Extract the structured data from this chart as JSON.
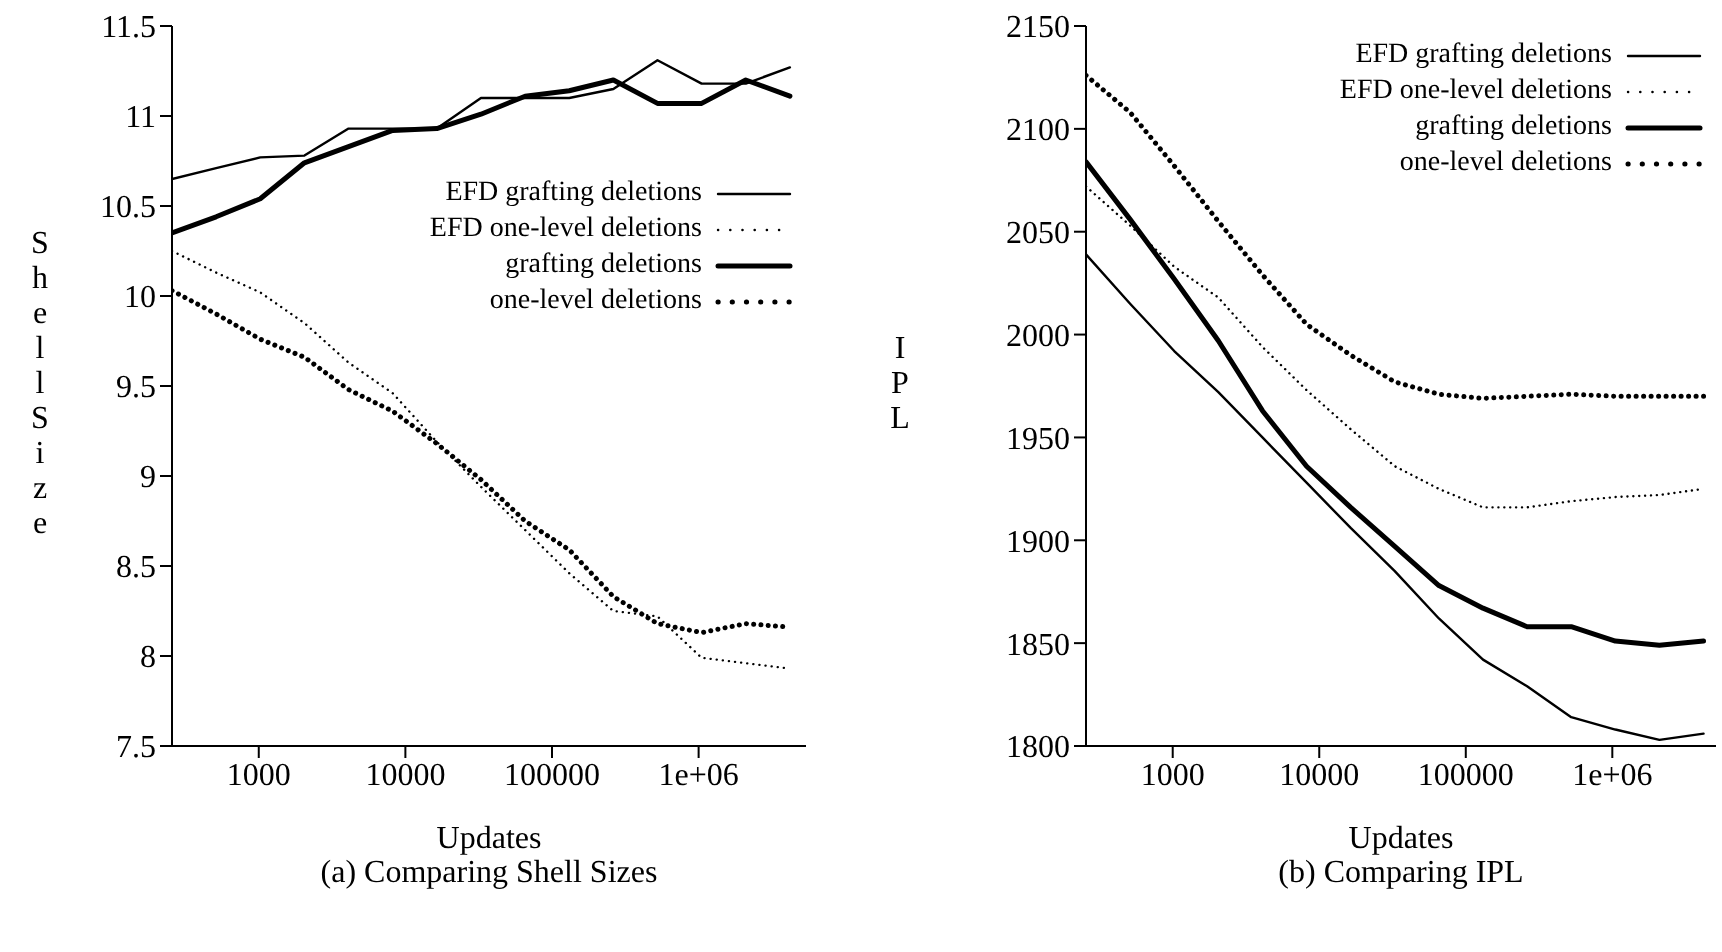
{
  "chart_data": [
    {
      "type": "line",
      "title": "(a) Comparing Shell Sizes",
      "xlabel": "Updates",
      "ylabel": "Shell Size",
      "log": "x",
      "legend": "top right",
      "grid": false,
      "marker": "none",
      "x": [
        256,
        512,
        1024,
        2048,
        4096,
        8192,
        16384,
        32768,
        65536,
        131072,
        262144,
        524288,
        1048576,
        2097152,
        4194304
      ],
      "xlim": [
        256,
        5400000
      ],
      "xticks": [
        1000,
        10000,
        100000,
        {
          "value": 1000000,
          "label": "1e+06"
        }
      ],
      "ylim": [
        7.5,
        11.5
      ],
      "yticks": [
        7.5,
        8,
        8.5,
        9,
        9.5,
        10,
        10.5,
        11,
        11.5
      ],
      "series": [
        {
          "name": "EFD grafting deletions",
          "color": "#000000",
          "line_style": "solid",
          "values": [
            10.65,
            10.71,
            10.77,
            10.78,
            10.93,
            10.93,
            10.93,
            11.1,
            11.1,
            11.1,
            11.15,
            11.31,
            11.18,
            11.18,
            11.27
          ]
        },
        {
          "name": "EFD one-level deletions",
          "color": "#000000",
          "line_style": "dotted",
          "values": [
            10.25,
            10.13,
            10.02,
            9.85,
            9.63,
            9.46,
            9.19,
            8.94,
            8.7,
            8.46,
            8.25,
            8.22,
            7.99,
            7.96,
            7.93
          ]
        },
        {
          "name": "grafting deletions",
          "color": "#000000",
          "line_style": "solid",
          "values": [
            10.35,
            10.44,
            10.54,
            10.74,
            10.83,
            10.92,
            10.93,
            11.01,
            11.11,
            11.14,
            11.2,
            11.07,
            11.07,
            11.2,
            11.11
          ]
        },
        {
          "name": "one-level deletions",
          "color": "#000000",
          "line_style": "dotted",
          "values": [
            10.03,
            9.9,
            9.76,
            9.66,
            9.48,
            9.36,
            9.18,
            8.98,
            8.75,
            8.59,
            8.33,
            8.18,
            8.13,
            8.18,
            8.16
          ]
        }
      ]
    },
    {
      "type": "line",
      "title": "(b) Comparing IPL",
      "xlabel": "Updates",
      "ylabel": "IPL",
      "log": "x",
      "legend": "top right",
      "grid": false,
      "marker": "none",
      "x": [
        256,
        512,
        1024,
        2048,
        4096,
        8192,
        16384,
        32768,
        65536,
        131072,
        262144,
        524288,
        1048576,
        2097152,
        4194304
      ],
      "xlim": [
        256,
        5100000
      ],
      "xticks": [
        1000,
        10000,
        100000,
        {
          "value": 1000000,
          "label": "1e+06"
        }
      ],
      "ylim": [
        1800,
        2150
      ],
      "yticks": [
        1800,
        1850,
        1900,
        1950,
        2000,
        2050,
        2100,
        2150
      ],
      "series": [
        {
          "name": "EFD grafting deletions",
          "color": "#000000",
          "line_style": "solid",
          "values": [
            2039,
            2015,
            1992,
            1972,
            1950,
            1928,
            1906,
            1885,
            1862,
            1842,
            1829,
            1814,
            1808,
            1803,
            1806
          ]
        },
        {
          "name": "EFD one-level deletions",
          "color": "#000000",
          "line_style": "dotted",
          "values": [
            2072,
            2053,
            2033,
            2018,
            1994,
            1973,
            1954,
            1936,
            1925,
            1916,
            1916,
            1919,
            1921,
            1922,
            1925
          ]
        },
        {
          "name": "grafting deletions",
          "color": "#000000",
          "line_style": "solid",
          "values": [
            2084,
            2056,
            2027,
            1997,
            1963,
            1936,
            1916,
            1897,
            1878,
            1867,
            1858,
            1858,
            1851,
            1849,
            1851
          ]
        },
        {
          "name": "one-level deletions",
          "color": "#000000",
          "line_style": "dotted",
          "values": [
            2126,
            2108,
            2082,
            2055,
            2029,
            2005,
            1990,
            1977,
            1971,
            1969,
            1970,
            1971,
            1970,
            1970,
            1970
          ]
        }
      ]
    }
  ]
}
